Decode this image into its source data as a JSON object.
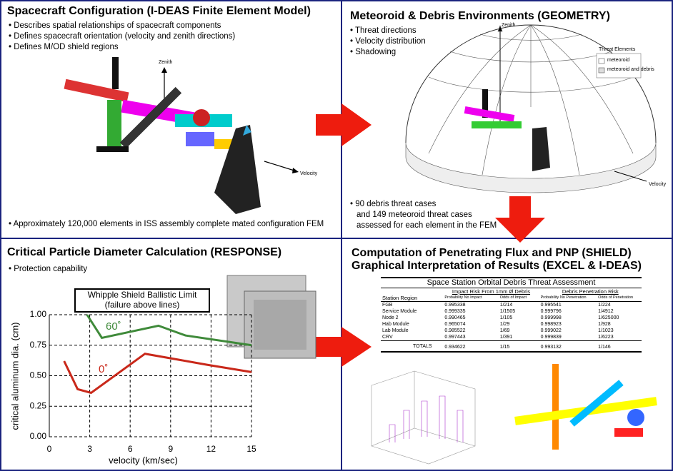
{
  "panels": [
    {
      "title": "Spacecraft Configuration (I-DEAS Finite Element Model)",
      "bullets": [
        "Describes spatial relationships of spacecraft components",
        "Defines spacecraft orientation (velocity and zenith directions)",
        "Defines M/OD shield regions"
      ],
      "labels": {
        "zenith": "Zenith",
        "velocity": "Velocity"
      },
      "footnote": "Approximately 120,000 elements in ISS assembly complete mated configuration FEM"
    },
    {
      "title": "Meteoroid & Debris Environments (GEOMETRY)",
      "bullets": [
        "Threat directions",
        "Velocity distribution",
        "Shadowing"
      ],
      "labels": {
        "zenith": "Zenith",
        "velocity": "Velocity"
      },
      "legend": {
        "title": "Threat Elements",
        "items": [
          "meteoroid",
          "meteoroid and debris"
        ]
      },
      "footnote": [
        "90 debris threat cases",
        "and 149 meteoroid threat cases",
        "assessed for each element in the FEM"
      ]
    },
    {
      "title": "Critical Particle Diameter Calculation (RESPONSE)",
      "bullets": [
        "Protection capability"
      ],
      "chart": {
        "type": "line",
        "title": [
          "Whipple Shield Ballistic Limit",
          "(failure above lines)"
        ],
        "x_label": "velocity (km/sec)",
        "y_label": "critical aluminum dia. (cm)",
        "xlim": [
          0,
          15
        ],
        "xticks": [
          0,
          3,
          6,
          9,
          12,
          15
        ],
        "ylim": [
          0,
          1
        ],
        "yticks": [
          {
            "value": 0,
            "label": "0.00"
          },
          {
            "value": 0.25,
            "label": "0.25"
          },
          {
            "value": 0.5,
            "label": "0.50"
          },
          {
            "value": 0.75,
            "label": "0.75"
          },
          {
            "value": 1,
            "label": "1.00"
          }
        ],
        "grid": true,
        "series": [
          {
            "name": "60˚",
            "color": "#3f8a3a",
            "x": [
              2.8,
              3.9,
              8.1,
              10.1,
              15
            ],
            "values": [
              1.0,
              0.81,
              0.91,
              0.83,
              0.75
            ]
          },
          {
            "name": "0˚",
            "color": "#c9281a",
            "x": [
              1.1,
              2.1,
              3.1,
              7.1,
              11.7,
              15
            ],
            "values": [
              0.62,
              0.39,
              0.36,
              0.68,
              0.59,
              0.53
            ]
          }
        ]
      }
    },
    {
      "title": [
        "Computation of Penetrating Flux and PNP (SHIELD)",
        "Graphical Interpretation of Results (EXCEL & I-DEAS)"
      ],
      "table": {
        "title": "Space Station Orbital Debris Threat Assessment",
        "groups": [
          "Impact Risk From 1mm Ø Debris",
          "Debris Penetration Risk"
        ],
        "columns": [
          "Station Region",
          "Probability No Impact",
          "Odds of Impact",
          "Probability No Penetration",
          "Odds of Penetration"
        ],
        "rows": [
          [
            "FGB",
            "0.995338",
            "1/214",
            "0.995541",
            "1/224"
          ],
          [
            "Service Module",
            "0.999335",
            "1/1505",
            "0.999796",
            "1/4912"
          ],
          [
            "Node 2",
            "0.990465",
            "1/105",
            "0.999998",
            "1/625000"
          ],
          [
            "Hab Module",
            "0.965074",
            "1/29",
            "0.998923",
            "1/928"
          ],
          [
            "Lab Module",
            "0.985522",
            "1/69",
            "0.999022",
            "1/1023"
          ],
          [
            "CRV",
            "0.997443",
            "1/391",
            "0.999839",
            "1/6223"
          ]
        ],
        "totals": [
          "TOTALS",
          "0.934622",
          "1/15",
          "0.993132",
          "1/146"
        ]
      }
    }
  ]
}
